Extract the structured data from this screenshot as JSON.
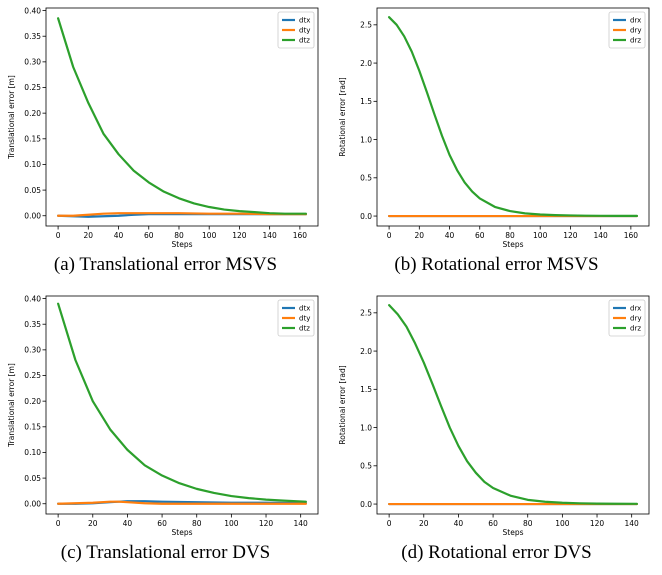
{
  "chart_data": [
    {
      "type": "line",
      "caption": "(a) Translational error MSVS",
      "xlabel": "Steps",
      "ylabel": "Translational error [m]",
      "xlim": [
        -8,
        172
      ],
      "ylim": [
        -0.02,
        0.405
      ],
      "xticks": [
        0,
        20,
        40,
        60,
        80,
        100,
        120,
        140,
        160
      ],
      "yticks": [
        "0.00",
        "0.05",
        "0.10",
        "0.15",
        "0.20",
        "0.25",
        "0.30",
        "0.35",
        "0.40"
      ],
      "grid": false,
      "legend": "top-right",
      "series": [
        {
          "name": "dtx",
          "color": "#1f77b4",
          "x": [
            0,
            10,
            20,
            30,
            40,
            50,
            60,
            80,
            100,
            120,
            140,
            164
          ],
          "y": [
            0.0,
            -0.001,
            -0.002,
            -0.001,
            0.0,
            0.002,
            0.003,
            0.003,
            0.003,
            0.003,
            0.003,
            0.003
          ]
        },
        {
          "name": "dty",
          "color": "#ff7f0e",
          "x": [
            0,
            10,
            20,
            30,
            40,
            60,
            80,
            100,
            120,
            140,
            164
          ],
          "y": [
            0.0,
            0.0,
            0.002,
            0.004,
            0.005,
            0.005,
            0.005,
            0.004,
            0.004,
            0.003,
            0.003
          ]
        },
        {
          "name": "dtz",
          "color": "#2ca02c",
          "x": [
            0,
            10,
            20,
            30,
            40,
            50,
            60,
            70,
            80,
            90,
            100,
            110,
            120,
            130,
            140,
            150,
            164
          ],
          "y": [
            0.385,
            0.29,
            0.22,
            0.16,
            0.12,
            0.088,
            0.065,
            0.047,
            0.034,
            0.024,
            0.017,
            0.012,
            0.009,
            0.007,
            0.005,
            0.004,
            0.004
          ]
        }
      ]
    },
    {
      "type": "line",
      "caption": "(b) Rotational error MSVS",
      "xlabel": "Steps",
      "ylabel": "Rotational error [rad]",
      "xlim": [
        -8,
        172
      ],
      "ylim": [
        -0.13,
        2.72
      ],
      "xticks": [
        0,
        20,
        40,
        60,
        80,
        100,
        120,
        140,
        160
      ],
      "yticks": [
        "0.0",
        "0.5",
        "1.0",
        "1.5",
        "2.0",
        "2.5"
      ],
      "grid": false,
      "legend": "top-right",
      "series": [
        {
          "name": "drx",
          "color": "#1f77b4",
          "x": [
            0,
            164
          ],
          "y": [
            0.0,
            0.0
          ]
        },
        {
          "name": "dry",
          "color": "#ff7f0e",
          "x": [
            0,
            164
          ],
          "y": [
            0.0,
            0.0
          ]
        },
        {
          "name": "drz",
          "color": "#2ca02c",
          "x": [
            0,
            5,
            10,
            15,
            20,
            25,
            30,
            35,
            40,
            45,
            50,
            55,
            60,
            70,
            80,
            90,
            100,
            110,
            120,
            130,
            140,
            150,
            164
          ],
          "y": [
            2.6,
            2.5,
            2.35,
            2.15,
            1.9,
            1.62,
            1.33,
            1.05,
            0.8,
            0.6,
            0.44,
            0.32,
            0.23,
            0.12,
            0.065,
            0.035,
            0.02,
            0.012,
            0.008,
            0.005,
            0.003,
            0.002,
            0.002
          ]
        }
      ]
    },
    {
      "type": "line",
      "caption": "(c) Translational error DVS",
      "xlabel": "Steps",
      "ylabel": "Translational error [m]",
      "xlim": [
        -7,
        150
      ],
      "ylim": [
        -0.02,
        0.405
      ],
      "xticks": [
        0,
        20,
        40,
        60,
        80,
        100,
        120,
        140
      ],
      "yticks": [
        "0.00",
        "0.05",
        "0.10",
        "0.15",
        "0.20",
        "0.25",
        "0.30",
        "0.35",
        "0.40"
      ],
      "grid": false,
      "legend": "top-right",
      "series": [
        {
          "name": "dtx",
          "color": "#1f77b4",
          "x": [
            0,
            10,
            20,
            30,
            40,
            50,
            60,
            80,
            100,
            120,
            143
          ],
          "y": [
            0.0,
            0.0,
            0.001,
            0.003,
            0.005,
            0.005,
            0.004,
            0.003,
            0.002,
            0.002,
            0.001
          ]
        },
        {
          "name": "dty",
          "color": "#ff7f0e",
          "x": [
            0,
            10,
            20,
            30,
            35,
            40,
            50,
            60,
            80,
            100,
            120,
            143
          ],
          "y": [
            0.0,
            0.001,
            0.002,
            0.004,
            0.004,
            0.003,
            0.001,
            0.0,
            0.0,
            0.0,
            0.0,
            0.0
          ]
        },
        {
          "name": "dtz",
          "color": "#2ca02c",
          "x": [
            0,
            10,
            20,
            30,
            40,
            50,
            60,
            70,
            80,
            90,
            100,
            110,
            120,
            130,
            143
          ],
          "y": [
            0.39,
            0.28,
            0.2,
            0.145,
            0.105,
            0.075,
            0.055,
            0.04,
            0.029,
            0.021,
            0.015,
            0.011,
            0.008,
            0.006,
            0.004
          ]
        }
      ]
    },
    {
      "type": "line",
      "caption": "(d) Rotational error DVS",
      "xlabel": "Steps",
      "ylabel": "Rotational error [rad]",
      "xlim": [
        -7,
        150
      ],
      "ylim": [
        -0.13,
        2.72
      ],
      "xticks": [
        0,
        20,
        40,
        60,
        80,
        100,
        120,
        140
      ],
      "yticks": [
        "0.0",
        "0.5",
        "1.0",
        "1.5",
        "2.0",
        "2.5"
      ],
      "grid": false,
      "legend": "top-right",
      "series": [
        {
          "name": "drx",
          "color": "#1f77b4",
          "x": [
            0,
            143
          ],
          "y": [
            0.0,
            0.0
          ]
        },
        {
          "name": "dry",
          "color": "#ff7f0e",
          "x": [
            0,
            143
          ],
          "y": [
            0.0,
            0.0
          ]
        },
        {
          "name": "drz",
          "color": "#2ca02c",
          "x": [
            0,
            5,
            10,
            15,
            20,
            25,
            30,
            35,
            40,
            45,
            50,
            55,
            60,
            70,
            80,
            90,
            100,
            110,
            120,
            130,
            143
          ],
          "y": [
            2.6,
            2.48,
            2.32,
            2.1,
            1.85,
            1.57,
            1.28,
            1.0,
            0.76,
            0.56,
            0.41,
            0.29,
            0.21,
            0.11,
            0.055,
            0.03,
            0.017,
            0.01,
            0.006,
            0.004,
            0.003
          ]
        }
      ]
    }
  ]
}
